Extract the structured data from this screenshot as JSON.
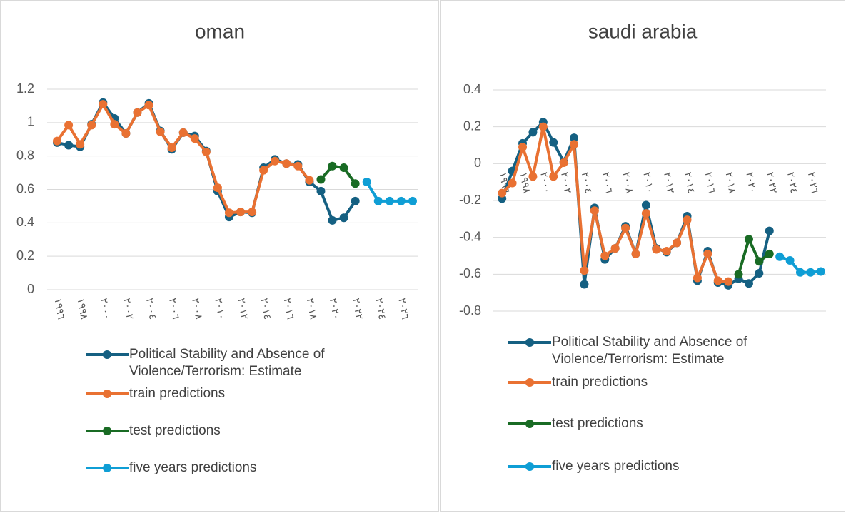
{
  "chart_data": [
    {
      "type": "line",
      "title": "oman",
      "categories": [
        "١٩٩٦",
        null,
        "١٩٩٨",
        null,
        "٢٠٠٠",
        null,
        "٢٠٠٢",
        null,
        "٢٠٠٤",
        null,
        "٢٠٠٦",
        null,
        "٢٠٠٨",
        null,
        "٢٠١٠",
        null,
        "٢٠١٢",
        null,
        "٢٠١٤",
        null,
        "٢٠١٦",
        null,
        "٢٠١٨",
        null,
        "٢٠٢٠",
        null,
        "٢٠٢٢",
        null,
        "٢٠٢٤",
        null,
        "٢٠٢٦",
        null
      ],
      "series": [
        {
          "name": "Political Stability and Absence of Violence/Terrorism: Estimate",
          "color": "#156082",
          "values": [
            0.88,
            0.865,
            0.855,
            0.99,
            1.12,
            1.025,
            0.935,
            1.06,
            1.115,
            0.95,
            0.84,
            0.94,
            0.92,
            0.83,
            0.59,
            0.435,
            0.465,
            0.46,
            0.73,
            0.78,
            0.755,
            0.75,
            0.645,
            0.59,
            0.415,
            0.43,
            0.53,
            null,
            null,
            null,
            null,
            null
          ]
        },
        {
          "name": "train predictions",
          "color": "#e97132",
          "values": [
            0.89,
            0.985,
            0.87,
            0.985,
            1.11,
            0.99,
            0.935,
            1.06,
            1.105,
            0.945,
            0.85,
            0.94,
            0.905,
            0.825,
            0.61,
            0.46,
            0.465,
            0.465,
            0.715,
            0.77,
            0.755,
            0.74,
            0.655,
            null,
            null,
            null,
            null,
            null,
            null,
            null,
            null,
            null
          ]
        },
        {
          "name": "test predictions",
          "color": "#196b24",
          "values": [
            null,
            null,
            null,
            null,
            null,
            null,
            null,
            null,
            null,
            null,
            null,
            null,
            null,
            null,
            null,
            null,
            null,
            null,
            null,
            null,
            null,
            null,
            null,
            0.66,
            0.74,
            0.73,
            0.635,
            null,
            null,
            null,
            null,
            null
          ]
        },
        {
          "name": "five years predictions",
          "color": "#0f9ed5",
          "values": [
            null,
            null,
            null,
            null,
            null,
            null,
            null,
            null,
            null,
            null,
            null,
            null,
            null,
            null,
            null,
            null,
            null,
            null,
            null,
            null,
            null,
            null,
            null,
            null,
            null,
            null,
            null,
            0.645,
            0.53,
            0.53,
            0.53,
            0.53
          ]
        }
      ],
      "ylim": [
        0,
        1.2
      ],
      "yticks": [
        0,
        0.2,
        0.4,
        0.6,
        0.8,
        1,
        1.2
      ],
      "grid": true,
      "legend": "bottom"
    },
    {
      "type": "line",
      "title": "saudi arabia",
      "categories": [
        "١٩٩٦",
        null,
        "١٩٩٨",
        null,
        "٢٠٠٠",
        null,
        "٢٠٠٢",
        null,
        "٢٠٠٤",
        null,
        "٢٠٠٦",
        null,
        "٢٠٠٨",
        null,
        "٢٠١٠",
        null,
        "٢٠١٢",
        null,
        "٢٠١٤",
        null,
        "٢٠١٦",
        null,
        "٢٠١٨",
        null,
        "٢٠٢٠",
        null,
        "٢٠٢٢",
        null,
        "٢٠٢٤",
        null,
        "٢٠٢٦",
        null
      ],
      "series": [
        {
          "name": "Political Stability and Absence of Violence/Terrorism: Estimate",
          "color": "#156082",
          "values": [
            -0.19,
            -0.04,
            0.11,
            0.17,
            0.225,
            0.115,
            0.01,
            0.14,
            -0.655,
            -0.24,
            -0.52,
            -0.46,
            -0.34,
            -0.49,
            -0.225,
            -0.46,
            -0.48,
            -0.43,
            -0.285,
            -0.635,
            -0.475,
            -0.645,
            -0.66,
            -0.625,
            -0.65,
            -0.595,
            -0.365,
            null,
            null,
            null,
            null,
            null
          ]
        },
        {
          "name": "train predictions",
          "color": "#e97132",
          "values": [
            -0.16,
            -0.105,
            0.09,
            -0.07,
            0.2,
            -0.07,
            0.005,
            0.105,
            -0.58,
            -0.255,
            -0.5,
            -0.46,
            -0.35,
            -0.49,
            -0.27,
            -0.465,
            -0.475,
            -0.43,
            -0.305,
            -0.62,
            -0.49,
            -0.635,
            -0.64,
            null,
            null,
            null,
            null,
            null,
            null,
            null,
            null,
            null
          ]
        },
        {
          "name": "test predictions",
          "color": "#196b24",
          "values": [
            null,
            null,
            null,
            null,
            null,
            null,
            null,
            null,
            null,
            null,
            null,
            null,
            null,
            null,
            null,
            null,
            null,
            null,
            null,
            null,
            null,
            null,
            null,
            -0.6,
            -0.41,
            -0.53,
            -0.49,
            null,
            null,
            null,
            null,
            null
          ]
        },
        {
          "name": "five years predictions",
          "color": "#0f9ed5",
          "values": [
            null,
            null,
            null,
            null,
            null,
            null,
            null,
            null,
            null,
            null,
            null,
            null,
            null,
            null,
            null,
            null,
            null,
            null,
            null,
            null,
            null,
            null,
            null,
            null,
            null,
            null,
            null,
            -0.505,
            -0.525,
            -0.59,
            -0.59,
            -0.585
          ]
        }
      ],
      "ylim": [
        -0.8,
        0.4
      ],
      "yticks": [
        -0.8,
        -0.6,
        -0.4,
        -0.2,
        0,
        0.2,
        0.4
      ],
      "grid": true,
      "legend": "bottom"
    }
  ]
}
